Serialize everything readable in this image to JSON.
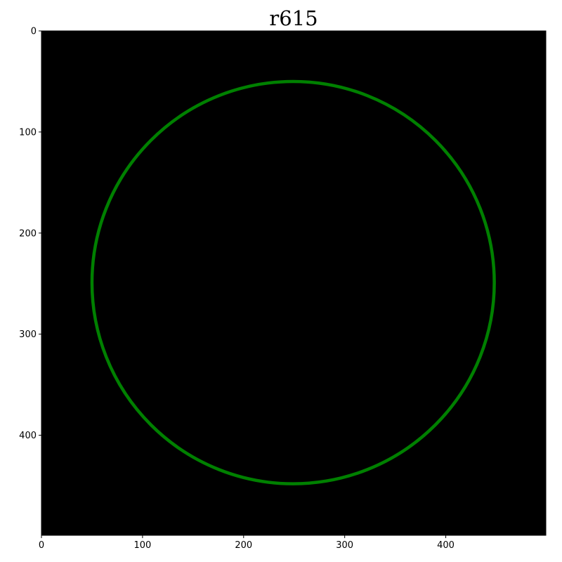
{
  "chart_data": {
    "type": "heatmap",
    "title": "r615",
    "xlabel": "",
    "ylabel": "",
    "xlim": [
      0,
      499
    ],
    "ylim": [
      499,
      0
    ],
    "x_ticks": [
      0,
      100,
      200,
      300,
      400
    ],
    "y_ticks": [
      0,
      100,
      200,
      300,
      400
    ],
    "grid": false,
    "background_color": "#000000",
    "image_description": "black image with a green circle ring centered near the middle",
    "ring": {
      "center": [
        249,
        249
      ],
      "radius": 199,
      "color": "#008000"
    }
  }
}
